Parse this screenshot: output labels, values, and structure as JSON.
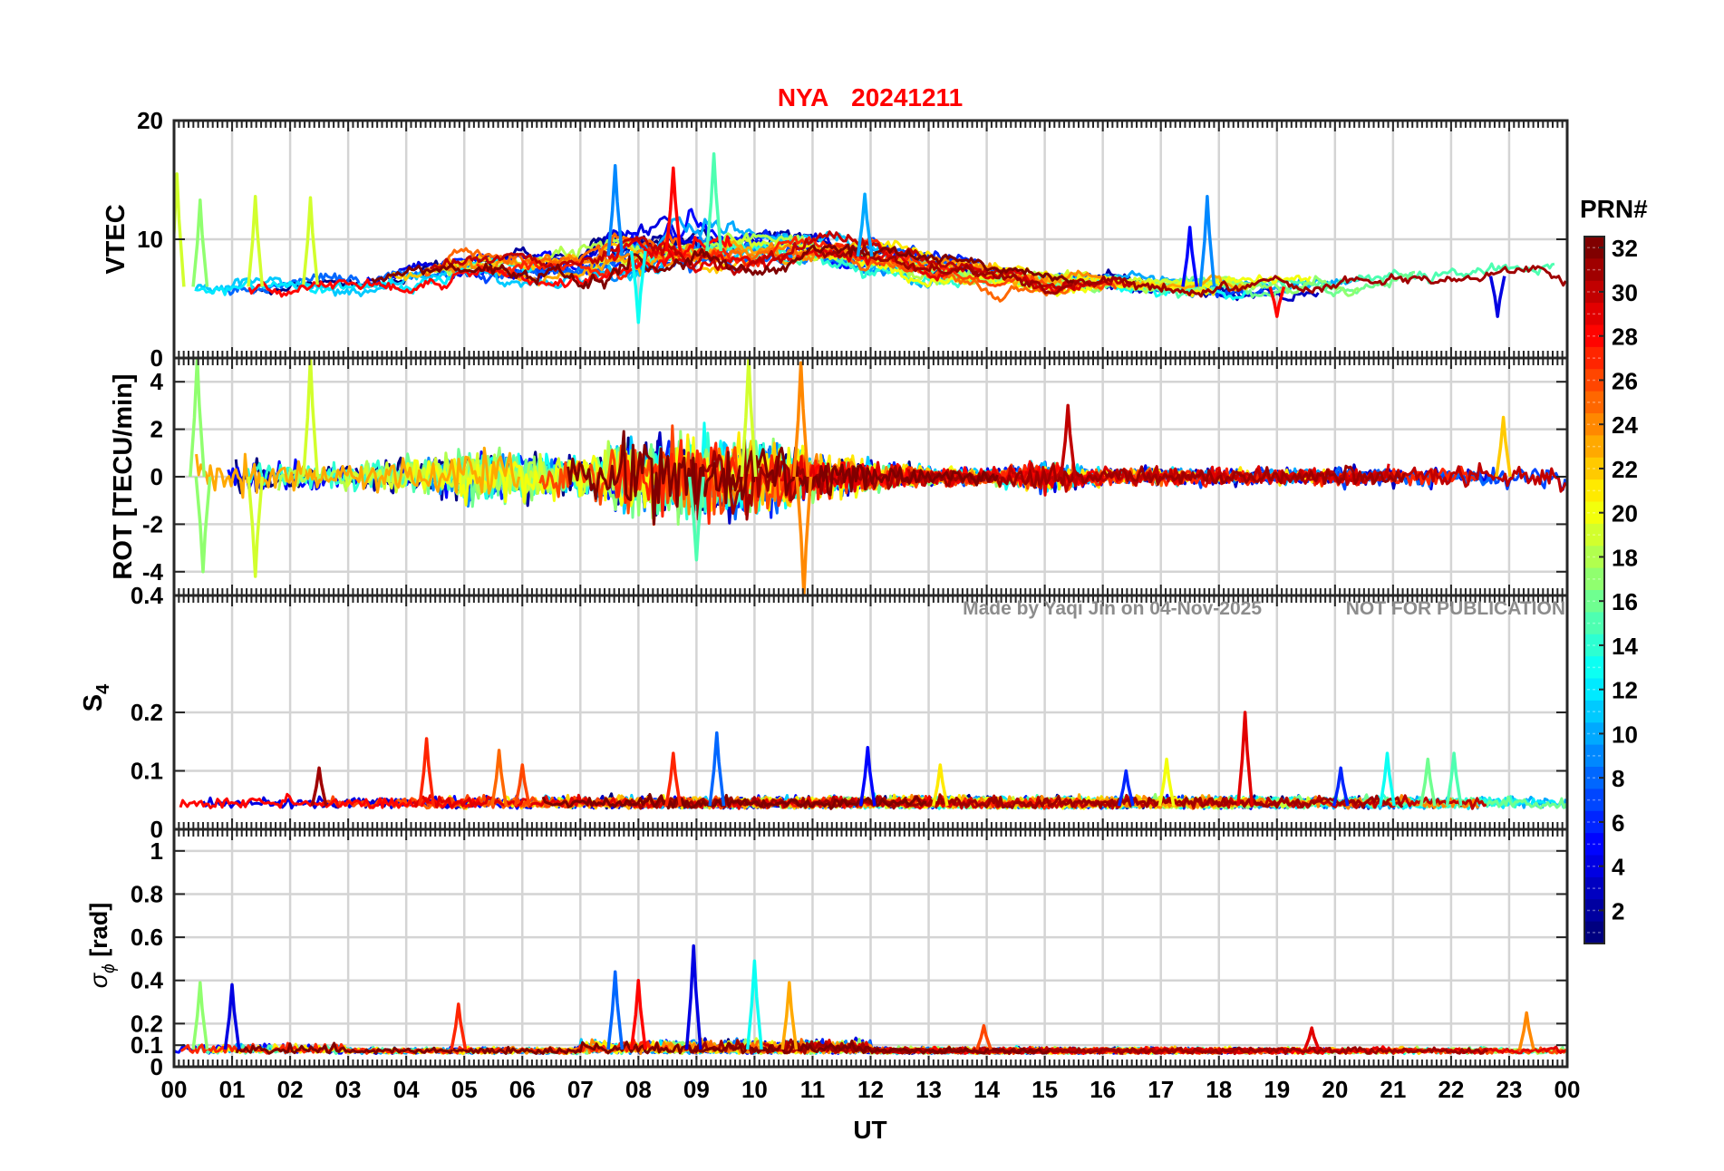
{
  "title": {
    "station": "NYA",
    "date": "20241211"
  },
  "colorbar": {
    "label": "PRN#",
    "min": 1,
    "max": 32,
    "tick_labels": [
      "2",
      "4",
      "6",
      "8",
      "10",
      "12",
      "14",
      "16",
      "18",
      "20",
      "22",
      "24",
      "26",
      "28",
      "30",
      "32"
    ],
    "colormap": "jet"
  },
  "watermark": {
    "made_by": "Made by Yaqi Jin on 04-Nov-2025",
    "notice": "NOT FOR PUBLICATION"
  },
  "colors": {
    "title": "#ff0000",
    "watermark": "#8c8c8c",
    "grid": "#d0d0d0"
  },
  "chart_data": [
    {
      "type": "line",
      "ylabel": "VTEC",
      "ylim": [
        0,
        20
      ],
      "y_tick_labels": [
        "0",
        "10",
        "20"
      ],
      "y_tick_values": [
        0,
        10,
        20
      ],
      "grid": true,
      "envelope": {
        "hours": [
          0,
          1,
          2,
          3,
          4,
          5,
          6,
          7,
          7.5,
          8,
          8.5,
          9,
          9.5,
          10,
          11,
          12,
          13,
          14,
          15,
          16,
          17,
          18,
          19,
          20,
          21,
          22,
          23,
          24
        ],
        "base": [
          6,
          6,
          6,
          6.5,
          7,
          8,
          7.5,
          7.5,
          8.5,
          9,
          9,
          9,
          9,
          9,
          9,
          8.5,
          7.5,
          7,
          6.5,
          6.5,
          6,
          6,
          6,
          6,
          6.5,
          6.5,
          7,
          7
        ],
        "spread": [
          1.5,
          1.5,
          1.2,
          1.2,
          1.5,
          1.5,
          1.5,
          2,
          3,
          3,
          3,
          3,
          2.5,
          2,
          2,
          1.8,
          1.5,
          1.2,
          1.2,
          1,
          1,
          1.2,
          1.2,
          1.2,
          1.3,
          1.3,
          1.3,
          1.5
        ]
      },
      "highlights": [
        {
          "x": 0.05,
          "y": 15.5,
          "prn": 19
        },
        {
          "x": 0.45,
          "y": 13.3,
          "prn": 17
        },
        {
          "x": 1.4,
          "y": 13.6,
          "prn": 19
        },
        {
          "x": 2.35,
          "y": 13.5,
          "prn": 19
        },
        {
          "x": 7.6,
          "y": 16.2,
          "prn": 9
        },
        {
          "x": 8.6,
          "y": 16.0,
          "prn": 28
        },
        {
          "x": 9.3,
          "y": 17.2,
          "prn": 15
        },
        {
          "x": 11.9,
          "y": 13.8,
          "prn": 10
        },
        {
          "x": 17.8,
          "y": 13.6,
          "prn": 9
        },
        {
          "x": 17.5,
          "y": 11.0,
          "prn": 5
        },
        {
          "x": 22.8,
          "y": 3.5,
          "prn": 4
        },
        {
          "x": 19.0,
          "y": 3.5,
          "prn": 28
        },
        {
          "x": 8.0,
          "y": 3.0,
          "prn": 13
        }
      ]
    },
    {
      "type": "line",
      "ylabel": "ROT [TECU/min]",
      "ylim": [
        -5,
        5
      ],
      "y_tick_labels": [
        "-4",
        "-2",
        "0",
        "2",
        "4"
      ],
      "y_tick_values": [
        -4,
        -2,
        0,
        2,
        4
      ],
      "grid": true,
      "envelope": {
        "hours": [
          0,
          1,
          2,
          3,
          4,
          5,
          6,
          7,
          8,
          9,
          10,
          11,
          12,
          13,
          14,
          15,
          16,
          17,
          18,
          19,
          20,
          21,
          22,
          23,
          24
        ],
        "spread": [
          2,
          1.5,
          1,
          0.8,
          1.2,
          1.8,
          1.5,
          1.2,
          2.5,
          2.8,
          2.5,
          1.5,
          1,
          0.6,
          0.5,
          1,
          0.6,
          0.6,
          0.6,
          0.5,
          0.6,
          0.7,
          0.7,
          0.7,
          1
        ]
      },
      "highlights": [
        {
          "x": 0.4,
          "y": 5.0,
          "prn": 17
        },
        {
          "x": 0.5,
          "y": -4.0,
          "prn": 17
        },
        {
          "x": 1.4,
          "y": -4.2,
          "prn": 19
        },
        {
          "x": 2.35,
          "y": 5.0,
          "prn": 19
        },
        {
          "x": 9.9,
          "y": 5.0,
          "prn": 19
        },
        {
          "x": 10.8,
          "y": 4.8,
          "prn": 24
        },
        {
          "x": 10.85,
          "y": -5.0,
          "prn": 24
        },
        {
          "x": 15.4,
          "y": 3.0,
          "prn": 30
        },
        {
          "x": 22.9,
          "y": 2.5,
          "prn": 22
        },
        {
          "x": 9.0,
          "y": -3.5,
          "prn": 15
        }
      ]
    },
    {
      "type": "line",
      "ylabel": "S4",
      "ylim": [
        0,
        0.4
      ],
      "y_tick_labels": [
        "0",
        "0.1",
        "0.2",
        "0.4"
      ],
      "y_tick_values": [
        0,
        0.1,
        0.2,
        0.4
      ],
      "grid": true,
      "highlights": [
        {
          "x": 2.5,
          "y": 0.105,
          "prn": 31
        },
        {
          "x": 4.35,
          "y": 0.155,
          "prn": 27
        },
        {
          "x": 5.6,
          "y": 0.135,
          "prn": 25
        },
        {
          "x": 6.0,
          "y": 0.11,
          "prn": 26
        },
        {
          "x": 8.6,
          "y": 0.13,
          "prn": 27
        },
        {
          "x": 9.35,
          "y": 0.165,
          "prn": 8
        },
        {
          "x": 11.95,
          "y": 0.14,
          "prn": 5
        },
        {
          "x": 13.2,
          "y": 0.11,
          "prn": 21
        },
        {
          "x": 16.4,
          "y": 0.1,
          "prn": 6
        },
        {
          "x": 17.1,
          "y": 0.12,
          "prn": 20
        },
        {
          "x": 18.45,
          "y": 0.2,
          "prn": 29
        },
        {
          "x": 20.1,
          "y": 0.105,
          "prn": 6
        },
        {
          "x": 20.9,
          "y": 0.13,
          "prn": 13
        },
        {
          "x": 21.6,
          "y": 0.12,
          "prn": 16
        },
        {
          "x": 22.05,
          "y": 0.13,
          "prn": 15
        }
      ]
    },
    {
      "type": "line",
      "ylabel": "σφ [rad]",
      "ylim": [
        0,
        1.1
      ],
      "y_tick_labels": [
        "0",
        "0.1",
        "0.2",
        "0.4",
        "0.6",
        "0.8",
        "1"
      ],
      "y_tick_values": [
        0,
        0.1,
        0.2,
        0.4,
        0.6,
        0.8,
        1.0
      ],
      "grid": true,
      "highlights": [
        {
          "x": 0.45,
          "y": 0.39,
          "prn": 17
        },
        {
          "x": 1.0,
          "y": 0.38,
          "prn": 4
        },
        {
          "x": 4.9,
          "y": 0.29,
          "prn": 27
        },
        {
          "x": 7.6,
          "y": 0.44,
          "prn": 8
        },
        {
          "x": 8.0,
          "y": 0.4,
          "prn": 28
        },
        {
          "x": 8.95,
          "y": 0.56,
          "prn": 4
        },
        {
          "x": 10.0,
          "y": 0.49,
          "prn": 13
        },
        {
          "x": 10.6,
          "y": 0.39,
          "prn": 23
        },
        {
          "x": 13.95,
          "y": 0.19,
          "prn": 26
        },
        {
          "x": 19.6,
          "y": 0.18,
          "prn": 29
        },
        {
          "x": 23.3,
          "y": 0.25,
          "prn": 24
        }
      ]
    }
  ],
  "x_axis": {
    "label": "UT",
    "tick_labels": [
      "00",
      "01",
      "02",
      "03",
      "04",
      "05",
      "06",
      "07",
      "08",
      "09",
      "10",
      "11",
      "12",
      "13",
      "14",
      "15",
      "16",
      "17",
      "18",
      "19",
      "20",
      "21",
      "22",
      "23",
      "00"
    ]
  }
}
